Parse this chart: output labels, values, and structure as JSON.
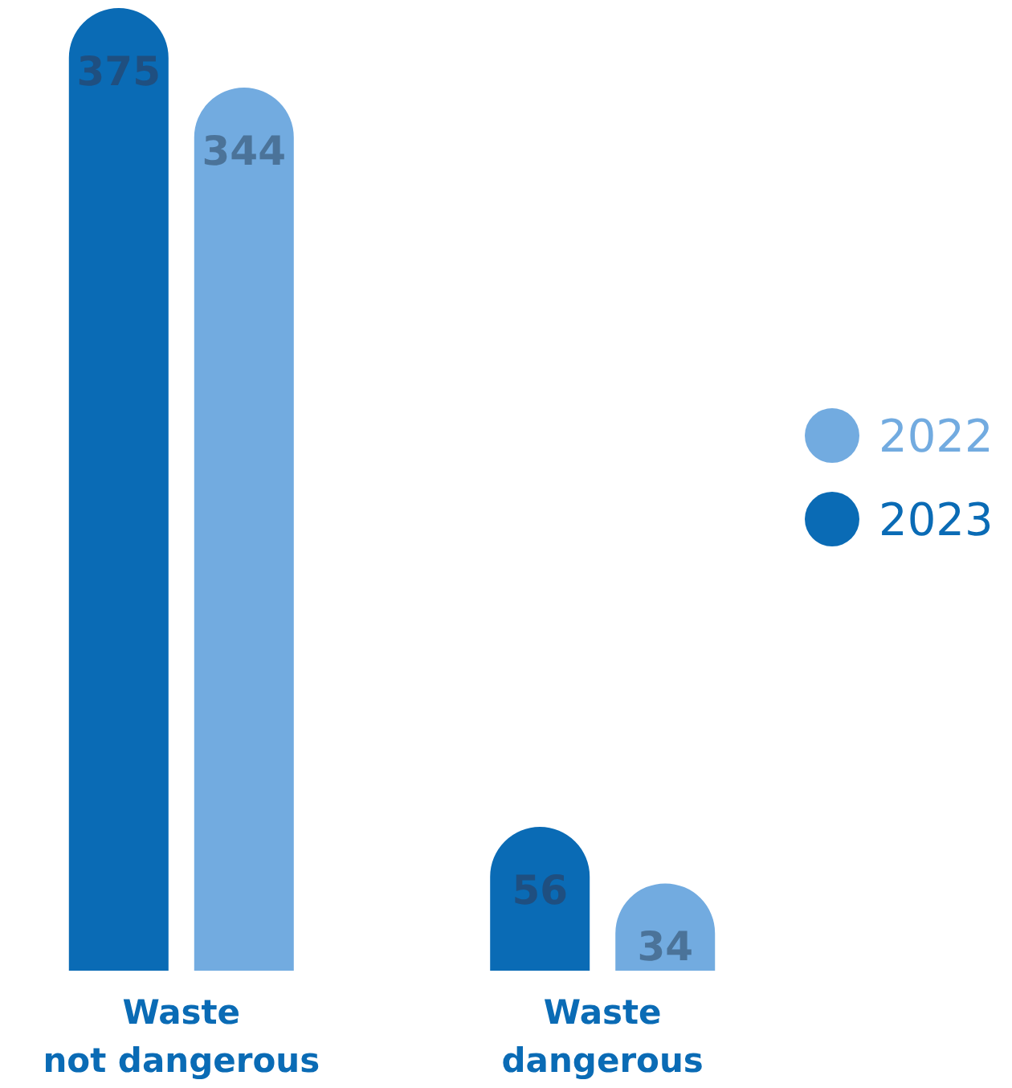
{
  "chart_data": {
    "type": "bar",
    "categories": [
      "Waste not dangerous",
      "Waste dangerous"
    ],
    "series": [
      {
        "name": "2023",
        "color": "#0a6bb5",
        "values": [
          375,
          56
        ]
      },
      {
        "name": "2022",
        "color": "#72abe0",
        "values": [
          344,
          34
        ]
      }
    ],
    "data_labels": true,
    "legend": "right"
  }
}
